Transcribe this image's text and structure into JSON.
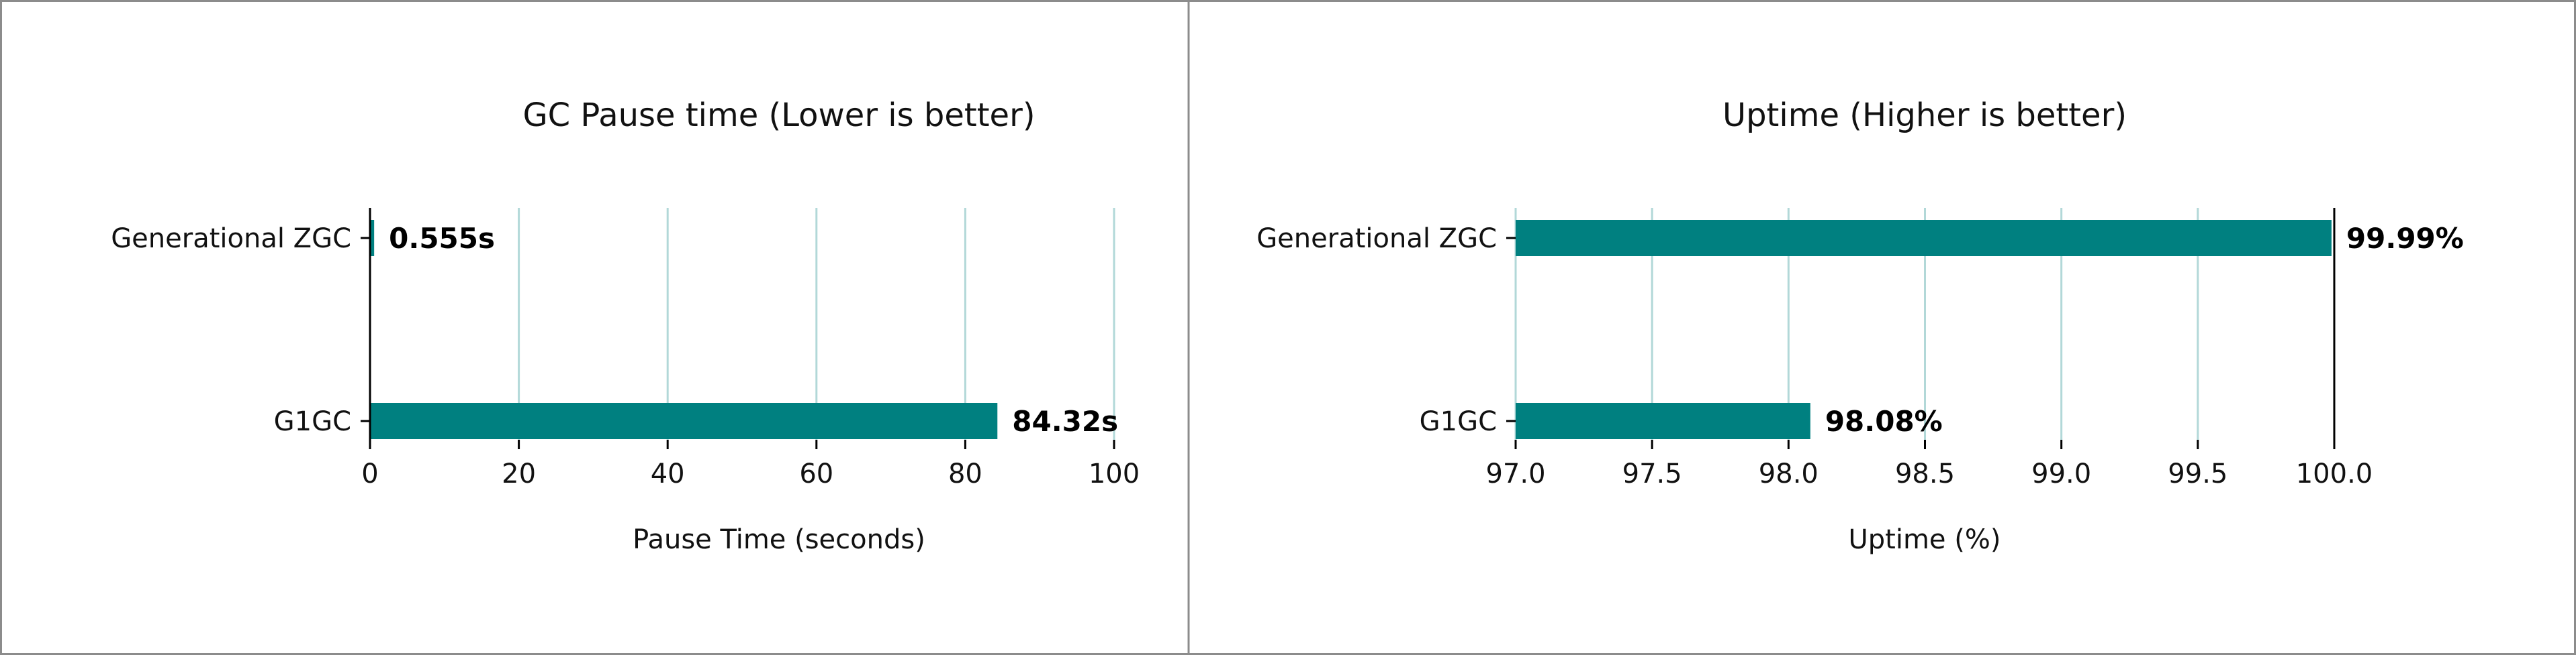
{
  "bar_color": "#008080",
  "grid_color": "#b2d8d8",
  "chart_data": [
    {
      "type": "bar",
      "orientation": "horizontal",
      "title": "GC Pause time (Lower is better)",
      "xlabel": "Pause Time (seconds)",
      "ylabel": "",
      "categories": [
        "Generational ZGC",
        "G1GC"
      ],
      "values": [
        0.555,
        84.32
      ],
      "data_labels": [
        "0.555s",
        "84.32s"
      ],
      "xlim": [
        0,
        100
      ],
      "xticks": [
        0,
        20,
        40,
        60,
        80,
        100
      ],
      "xtick_labels": [
        "0",
        "20",
        "40",
        "60",
        "80",
        "100"
      ],
      "grid": "vertical"
    },
    {
      "type": "bar",
      "orientation": "horizontal",
      "title": "Uptime (Higher is better)",
      "xlabel": "Uptime (%)",
      "ylabel": "",
      "categories": [
        "Generational ZGC",
        "G1GC"
      ],
      "values": [
        99.99,
        98.08
      ],
      "data_labels": [
        "99.99%",
        "98.08%"
      ],
      "xlim": [
        97.0,
        100.0
      ],
      "xticks": [
        97.0,
        97.5,
        98.0,
        98.5,
        99.0,
        99.5,
        100.0
      ],
      "xtick_labels": [
        "97.0",
        "97.5",
        "98.0",
        "98.5",
        "99.0",
        "99.5",
        "100.0"
      ],
      "grid": "vertical"
    }
  ]
}
